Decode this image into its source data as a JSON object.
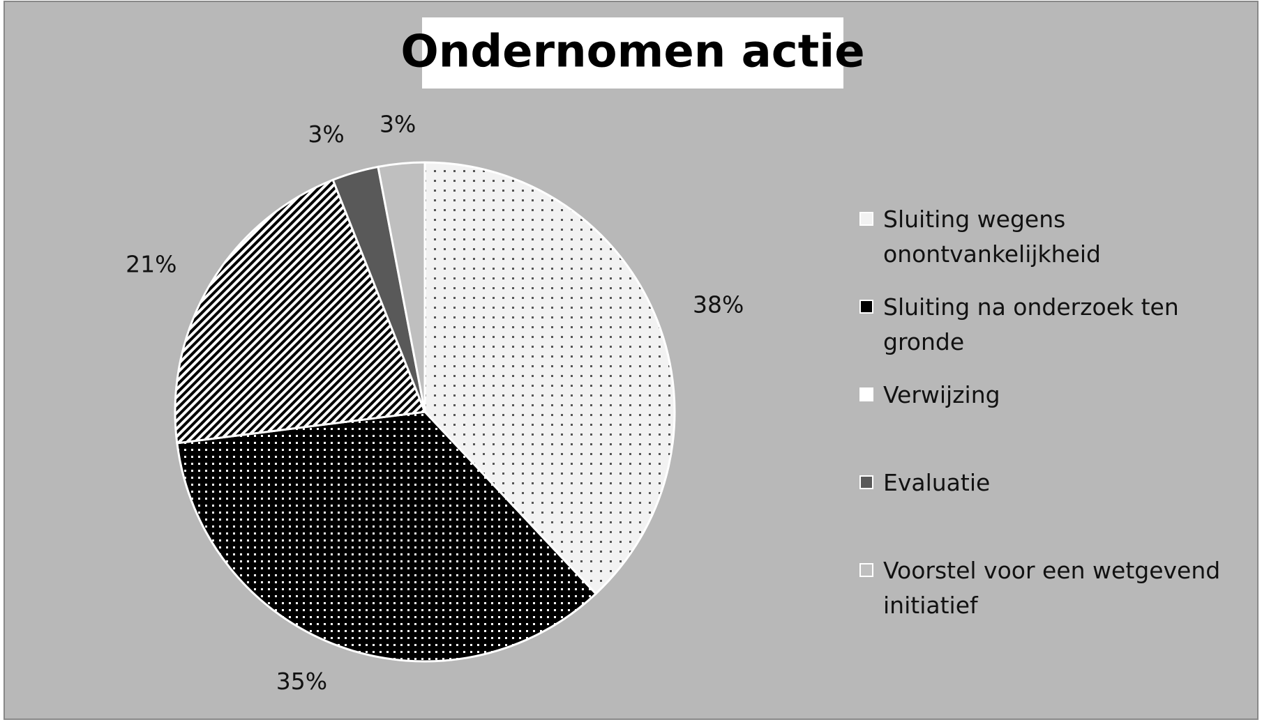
{
  "chart_data": {
    "type": "pie",
    "title": "Ondernomen actie",
    "categories": [
      "Sluiting wegens onontvankelijkheid",
      "Sluiting na onderzoek ten gronde",
      "Verwijzing",
      "Evaluatie",
      "Voorstel voor een wetgevend initiatief"
    ],
    "values": [
      38,
      35,
      21,
      3,
      3
    ],
    "value_labels": [
      "38%",
      "35%",
      "21%",
      "3%",
      "3%"
    ],
    "colors": [
      "#f2f2f2",
      "#000000",
      "#ffffff",
      "#595959",
      "#bfbfbf"
    ],
    "legend": "right"
  }
}
